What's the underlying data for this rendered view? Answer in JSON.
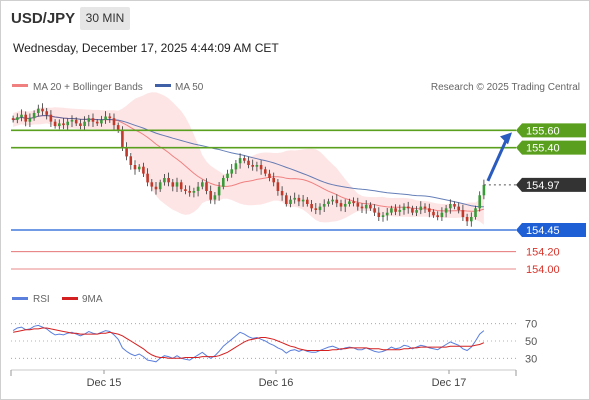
{
  "header": {
    "symbol": "USD/JPY",
    "timeframe": "30 MIN",
    "timestamp": "Wednesday, December 17, 2025 4:44:09 AM CET"
  },
  "legend": {
    "ma20": "MA 20 + Bollinger Bands",
    "ma50": "MA 50",
    "credit": "Research © 2025 Trading Central",
    "rsi": "RSI",
    "rsi_ma": "9MA"
  },
  "colors": {
    "up": "#3a9a3a",
    "down": "#c0392b",
    "resistance": "#5aa01e",
    "support": "#1f5fd6",
    "target_red": "#e06060",
    "ma20": "#f08080",
    "ma50": "#3f5fa6",
    "band_fill": "#fde0e0",
    "arrow": "#2a5bbf",
    "rsi": "#5b7fdc",
    "rsi_ma": "#d42020",
    "current": "#333333"
  },
  "chart_data": [
    {
      "type": "candlestick",
      "title": "USD/JPY",
      "x_labels": [
        "Dec 15",
        "Dec 16",
        "Dec 17"
      ],
      "ylim": [
        153.85,
        155.95
      ],
      "levels": {
        "r2": 155.6,
        "r1": 155.4,
        "current": 154.97,
        "s1": 154.45,
        "s2": 154.2,
        "s3": 154.0
      },
      "level_labels": [
        "155.60",
        "155.40",
        "154.97",
        "154.45",
        "154.20",
        "154.00"
      ],
      "close": [
        155.72,
        155.75,
        155.78,
        155.7,
        155.74,
        155.8,
        155.85,
        155.82,
        155.78,
        155.7,
        155.65,
        155.68,
        155.66,
        155.7,
        155.72,
        155.68,
        155.65,
        155.7,
        155.74,
        155.7,
        155.68,
        155.72,
        155.76,
        155.74,
        155.66,
        155.6,
        155.4,
        155.3,
        155.2,
        155.15,
        155.18,
        155.1,
        155.0,
        154.95,
        154.92,
        155.0,
        155.05,
        155.0,
        154.95,
        155.0,
        154.92,
        154.9,
        154.88,
        154.9,
        154.95,
        155.0,
        154.9,
        154.8,
        154.85,
        154.95,
        155.05,
        155.1,
        155.15,
        155.22,
        155.28,
        155.25,
        155.2,
        155.18,
        155.2,
        155.15,
        155.1,
        155.05,
        155.0,
        154.9,
        154.85,
        154.75,
        154.8,
        154.82,
        154.78,
        154.8,
        154.75,
        154.7,
        154.68,
        154.72,
        154.75,
        154.78,
        154.8,
        154.76,
        154.72,
        154.75,
        154.78,
        154.76,
        154.72,
        154.7,
        154.74,
        154.7,
        154.65,
        154.6,
        154.62,
        154.65,
        154.7,
        154.66,
        154.68,
        154.72,
        154.7,
        154.65,
        154.68,
        154.72,
        154.7,
        154.66,
        154.62,
        154.6,
        154.65,
        154.7,
        154.75,
        154.72,
        154.68,
        154.6,
        154.55,
        154.6,
        154.7,
        154.85,
        154.97
      ]
    },
    {
      "type": "line",
      "title": "RSI",
      "ylim": [
        20,
        80
      ],
      "ticks": [
        "70",
        "50",
        "30"
      ],
      "series": [
        {
          "name": "RSI",
          "values": [
            62,
            65,
            66,
            63,
            64,
            67,
            68,
            66,
            64,
            60,
            57,
            58,
            57,
            59,
            60,
            58,
            56,
            58,
            61,
            59,
            58,
            60,
            62,
            61,
            57,
            52,
            42,
            38,
            35,
            33,
            35,
            32,
            28,
            27,
            26,
            30,
            33,
            32,
            30,
            33,
            30,
            29,
            28,
            31,
            34,
            37,
            33,
            30,
            33,
            38,
            44,
            48,
            52,
            56,
            60,
            58,
            55,
            53,
            54,
            52,
            50,
            47,
            45,
            42,
            40,
            36,
            39,
            40,
            38,
            40,
            38,
            37,
            37,
            39,
            41,
            43,
            44,
            42,
            40,
            42,
            43,
            42,
            40,
            40,
            42,
            40,
            38,
            37,
            38,
            40,
            43,
            41,
            42,
            45,
            44,
            41,
            43,
            45,
            44,
            42,
            41,
            40,
            43,
            46,
            49,
            47,
            45,
            41,
            39,
            43,
            50,
            58,
            62
          ]
        },
        {
          "name": "9MA",
          "values": [
            60,
            61,
            62,
            63,
            63,
            64,
            64,
            65,
            65,
            64,
            63,
            62,
            61,
            60,
            59,
            59,
            58,
            58,
            58,
            58,
            58,
            59,
            59,
            60,
            59,
            58,
            56,
            53,
            50,
            47,
            44,
            41,
            37,
            34,
            32,
            31,
            31,
            30,
            30,
            30,
            30,
            31,
            31,
            31,
            31,
            32,
            32,
            32,
            32,
            33,
            35,
            37,
            40,
            43,
            46,
            49,
            51,
            52,
            53,
            54,
            54,
            53,
            52,
            50,
            48,
            46,
            44,
            43,
            41,
            40,
            39,
            39,
            39,
            39,
            39,
            39,
            40,
            40,
            41,
            41,
            42,
            42,
            42,
            42,
            42,
            41,
            41,
            41,
            40,
            40,
            40,
            40,
            40,
            41,
            41,
            42,
            42,
            43,
            43,
            43,
            43,
            43,
            43,
            43,
            44,
            44,
            44,
            44,
            44,
            44,
            45,
            46,
            48
          ]
        }
      ]
    }
  ]
}
